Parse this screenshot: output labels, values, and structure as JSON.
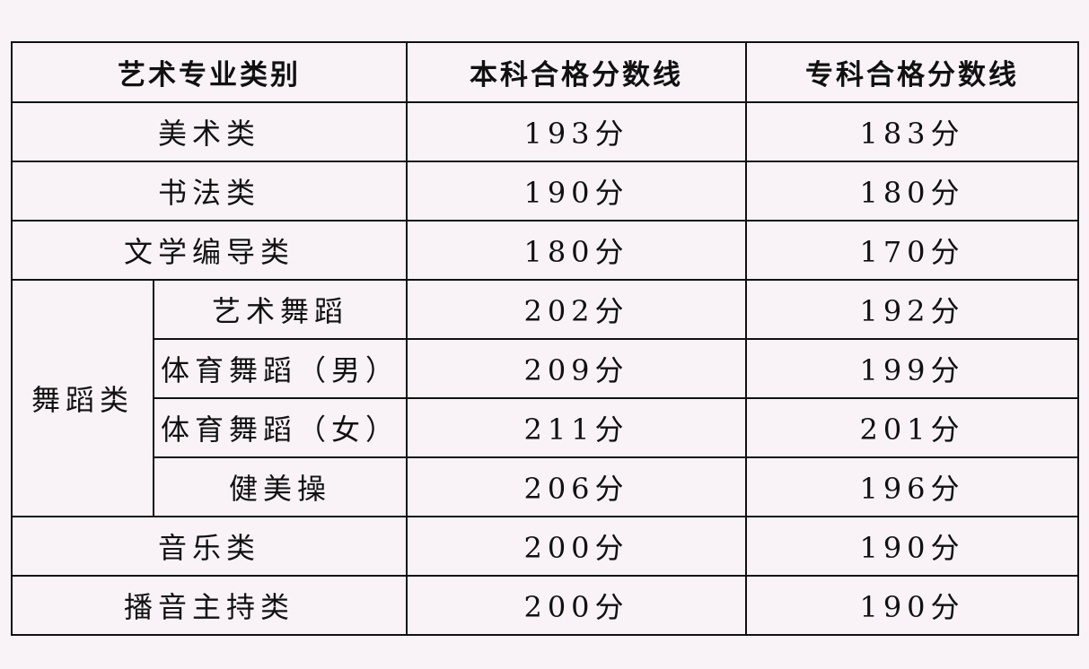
{
  "headers": [
    "艺术专业类别",
    "本科合格分数线",
    "专科合格分数线"
  ],
  "rows": [
    {
      "category": "美术类",
      "undergrad": "193分",
      "junior": "183分"
    },
    {
      "category": "书法类",
      "undergrad": "190分",
      "junior": "180分"
    },
    {
      "category": "文学编导类",
      "undergrad": "180分",
      "junior": "170分"
    },
    {
      "category": "舞蹈类",
      "sub": "艺术舞蹈",
      "undergrad": "202分",
      "junior": "192分"
    },
    {
      "category": "舞蹈类",
      "sub": "体育舞蹈（男）",
      "undergrad": "209分",
      "junior": "199分"
    },
    {
      "category": "舞蹈类",
      "sub": "体育舞蹈（女）",
      "undergrad": "211分",
      "junior": "201分"
    },
    {
      "category": "舞蹈类",
      "sub": "健美操",
      "undergrad": "206分",
      "junior": "196分"
    },
    {
      "category": "音乐类",
      "undergrad": "200分",
      "junior": "190分"
    },
    {
      "category": "播音主持类",
      "undergrad": "200分",
      "junior": "190分"
    }
  ]
}
